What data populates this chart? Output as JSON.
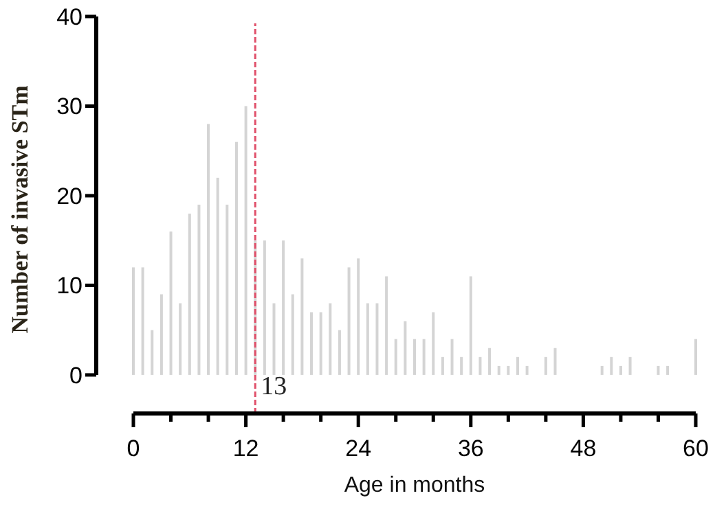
{
  "chart_data": {
    "type": "bar",
    "xlabel": "Age in months",
    "ylabel": "Number of invasive STm",
    "x": [
      0,
      1,
      2,
      3,
      4,
      5,
      6,
      7,
      8,
      9,
      10,
      11,
      12,
      13,
      14,
      15,
      16,
      17,
      18,
      19,
      20,
      21,
      22,
      23,
      24,
      25,
      26,
      27,
      28,
      29,
      30,
      31,
      32,
      33,
      34,
      35,
      36,
      37,
      38,
      39,
      40,
      41,
      42,
      43,
      44,
      45,
      46,
      47,
      48,
      49,
      50,
      51,
      52,
      53,
      54,
      55,
      56,
      57,
      58,
      59,
      60
    ],
    "values": [
      12,
      12,
      5,
      9,
      16,
      8,
      18,
      19,
      28,
      22,
      19,
      26,
      30,
      15,
      15,
      8,
      15,
      9,
      13,
      7,
      7,
      8,
      5,
      12,
      13,
      8,
      8,
      11,
      4,
      6,
      4,
      4,
      7,
      2,
      4,
      2,
      11,
      2,
      3,
      1,
      1,
      2,
      1,
      0,
      2,
      3,
      0,
      0,
      0,
      0,
      1,
      2,
      1,
      2,
      0,
      0,
      1,
      1,
      0,
      0,
      4
    ],
    "color": "#d4d4d4",
    "xlim": [
      0,
      60
    ],
    "xticks": [
      0,
      {
        "value": 4,
        "label": null
      },
      {
        "value": 8,
        "label": null
      },
      12,
      {
        "value": 16,
        "label": null
      },
      {
        "value": 20,
        "label": null
      },
      24,
      {
        "value": 28,
        "label": null
      },
      {
        "value": 32,
        "label": null
      },
      36,
      {
        "value": 40,
        "label": null
      },
      {
        "value": 44,
        "label": null
      },
      48,
      {
        "value": 52,
        "label": null
      },
      {
        "value": 56,
        "label": null
      },
      60
    ],
    "ylim": [
      -4.3,
      40
    ],
    "yticks": [
      0,
      10,
      20,
      30,
      40
    ],
    "ref_lines": [
      {
        "axis": "x",
        "value": 13,
        "label": "13",
        "color": "#e0506a",
        "line_style": "dashed"
      }
    ],
    "grid": false
  }
}
